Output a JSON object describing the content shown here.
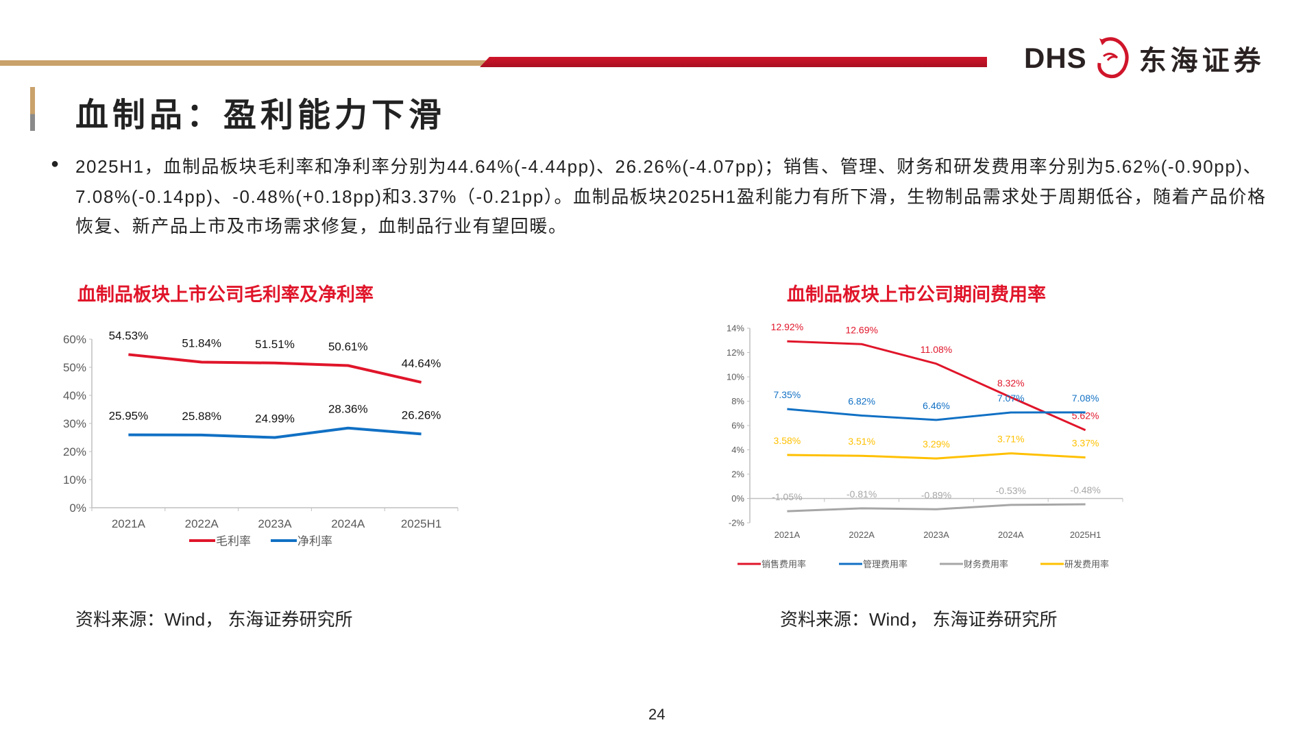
{
  "header": {
    "logo_text": "DHS",
    "logo_cn": "东海证券",
    "colors": {
      "tan": "#c9a16a",
      "red": "#c8102e"
    }
  },
  "title": "血制品：盈利能力下滑",
  "bullet": "●",
  "body": "2025H1，血制品板块毛利率和净利率分别为44.64%(-4.44pp)、26.26%(-4.07pp)；销售、管理、财务和研发费用率分别为5.62%(-0.90pp)、7.08%(-0.14pp)、-0.48%(+0.18pp)和3.37%（-0.21pp）。血制品板块2025H1盈利能力有所下滑，生物制品需求处于周期低谷，随着产品价格恢复、新产品上市及市场需求修复，血制品行业有望回暖。",
  "chart1_title": "血制品板块上市公司毛利率及净利率",
  "chart2_title": "血制品板块上市公司期间费用率",
  "source1": "资料来源：Wind， 东海证券研究所",
  "source2": "资料来源：Wind， 东海证券研究所",
  "page_number": "24",
  "chart_data": [
    {
      "type": "line",
      "categories": [
        "2021A",
        "2022A",
        "2023A",
        "2024A",
        "2025H1"
      ],
      "ylim": [
        0,
        60
      ],
      "yticks": [
        "0%",
        "10%",
        "20%",
        "30%",
        "40%",
        "50%",
        "60%"
      ],
      "ytick_values": [
        0,
        10,
        20,
        30,
        40,
        50,
        60
      ],
      "legend": "bottom",
      "series": [
        {
          "name": "毛利率",
          "color": "#e0152a",
          "values": [
            54.53,
            51.84,
            51.51,
            50.61,
            44.64
          ],
          "labels": [
            "54.53%",
            "51.84%",
            "51.51%",
            "50.61%",
            "44.64%"
          ]
        },
        {
          "name": "净利率",
          "color": "#1170c4",
          "values": [
            25.95,
            25.88,
            24.99,
            28.36,
            26.26
          ],
          "labels": [
            "25.95%",
            "25.88%",
            "24.99%",
            "28.36%",
            "26.26%"
          ]
        }
      ]
    },
    {
      "type": "line",
      "categories": [
        "2021A",
        "2022A",
        "2023A",
        "2024A",
        "2025H1"
      ],
      "ylim": [
        -2,
        14
      ],
      "yticks": [
        "-2%",
        "0%",
        "2%",
        "4%",
        "6%",
        "8%",
        "10%",
        "12%",
        "14%"
      ],
      "ytick_values": [
        -2,
        0,
        2,
        4,
        6,
        8,
        10,
        12,
        14
      ],
      "legend": "bottom",
      "series": [
        {
          "name": "销售费用率",
          "color": "#e0152a",
          "values": [
            12.92,
            12.69,
            11.08,
            8.32,
            5.62
          ],
          "labels": [
            "12.92%",
            "12.69%",
            "11.08%",
            "8.32%",
            "5.62%"
          ]
        },
        {
          "name": "管理费用率",
          "color": "#1170c4",
          "values": [
            7.35,
            6.82,
            6.46,
            7.07,
            7.08
          ],
          "labels": [
            "7.35%",
            "6.82%",
            "6.46%",
            "7.07%",
            "7.08%"
          ]
        },
        {
          "name": "财务费用率",
          "color": "#a6a6a6",
          "values": [
            -1.05,
            -0.81,
            -0.89,
            -0.53,
            -0.48
          ],
          "labels": [
            "-1.05%",
            "-0.81%",
            "-0.89%",
            "-0.53%",
            "-0.48%"
          ]
        },
        {
          "name": "研发费用率",
          "color": "#ffc000",
          "values": [
            3.58,
            3.51,
            3.29,
            3.71,
            3.37
          ],
          "labels": [
            "3.58%",
            "3.51%",
            "3.29%",
            "3.71%",
            "3.37%"
          ]
        }
      ]
    }
  ]
}
